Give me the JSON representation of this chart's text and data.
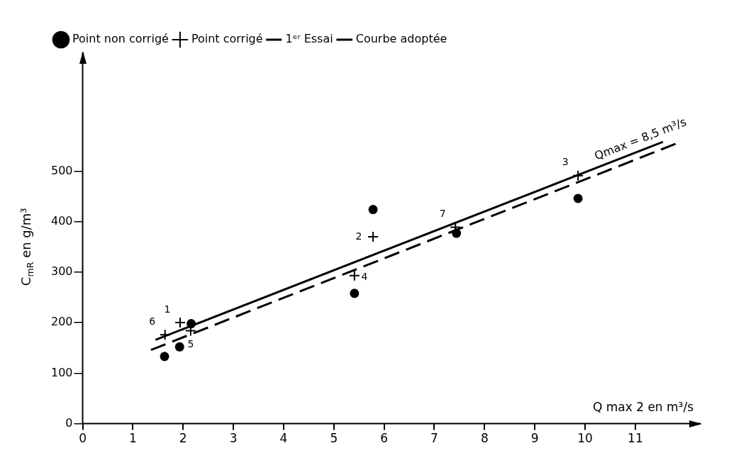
{
  "chart_data": {
    "type": "scatter",
    "xlabel": "Q max 2 en m³/s",
    "ylabel": "C$_{mR}$ en g/m³",
    "xlim": [
      0,
      12.3
    ],
    "ylim": [
      0,
      735
    ],
    "xticks": [
      0,
      1,
      2,
      3,
      4,
      5,
      6,
      7,
      8,
      9,
      10,
      11
    ],
    "yticks": [
      0,
      100,
      200,
      300,
      400,
      500
    ],
    "grid": false,
    "legend": "top left",
    "series": [
      {
        "name": "Point non corrigé",
        "marker": "circle",
        "color": "#000000",
        "x": [
          1.63,
          1.93,
          2.16,
          5.41,
          5.78,
          7.44,
          9.86
        ],
        "values": [
          133,
          152,
          198,
          258,
          424,
          377,
          446
        ]
      },
      {
        "name": "Point corrigé",
        "marker": "cross",
        "color": "#000000",
        "x": [
          1.64,
          1.94,
          2.15,
          5.41,
          5.78,
          7.42,
          9.86
        ],
        "values": [
          176,
          200,
          184,
          293,
          370,
          389,
          491
        ]
      },
      {
        "name": "1ᵉʳ Essai",
        "type": "line",
        "line_style": "dashed",
        "marker": "none",
        "color": "#000000",
        "x": [
          1.36,
          11.8
        ],
        "values": [
          146,
          554
        ]
      },
      {
        "name": "Courbe adoptée",
        "type": "line",
        "line_style": "solid",
        "marker": "none",
        "color": "#000000",
        "x": [
          1.45,
          11.55
        ],
        "values": [
          166,
          558
        ]
      }
    ],
    "annotations": [
      {
        "text": "1",
        "x": 1.94,
        "y": 200
      },
      {
        "text": "6",
        "x": 1.64,
        "y": 176
      },
      {
        "text": "5",
        "x": 2.15,
        "y": 184
      },
      {
        "text": "4",
        "x": 5.41,
        "y": 293
      },
      {
        "text": "2",
        "x": 5.78,
        "y": 370
      },
      {
        "text": "7",
        "x": 7.42,
        "y": 389
      },
      {
        "text": "3",
        "x": 9.86,
        "y": 491
      },
      {
        "text": "Qmax = 8,5 m³/s",
        "x": 11.18,
        "y": 544
      }
    ]
  }
}
